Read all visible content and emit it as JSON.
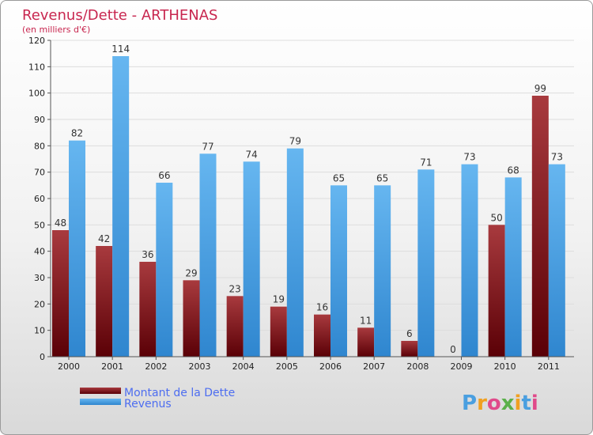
{
  "chart_data": {
    "type": "bar",
    "title": "Revenus/Dette - ARTHENAS",
    "subtitle": "(en milliers d'€)",
    "categories": [
      "2000",
      "2001",
      "2002",
      "2003",
      "2004",
      "2005",
      "2006",
      "2007",
      "2008",
      "2009",
      "2010",
      "2011"
    ],
    "series": [
      {
        "name": "Montant de la Dette",
        "color": "#7b0f12",
        "values": [
          48,
          42,
          36,
          29,
          23,
          19,
          16,
          11,
          6,
          0,
          50,
          99
        ]
      },
      {
        "name": "Revenus",
        "color": "#4a9fe0",
        "values": [
          82,
          114,
          66,
          77,
          74,
          79,
          65,
          65,
          71,
          73,
          68,
          73
        ]
      }
    ],
    "yticks": [
      0,
      10,
      20,
      30,
      40,
      50,
      60,
      70,
      80,
      90,
      100,
      110,
      120
    ],
    "ylim": [
      0,
      120
    ],
    "grid": true,
    "legend_position": "bottom-left"
  },
  "logo": {
    "text": "Proxiti"
  }
}
